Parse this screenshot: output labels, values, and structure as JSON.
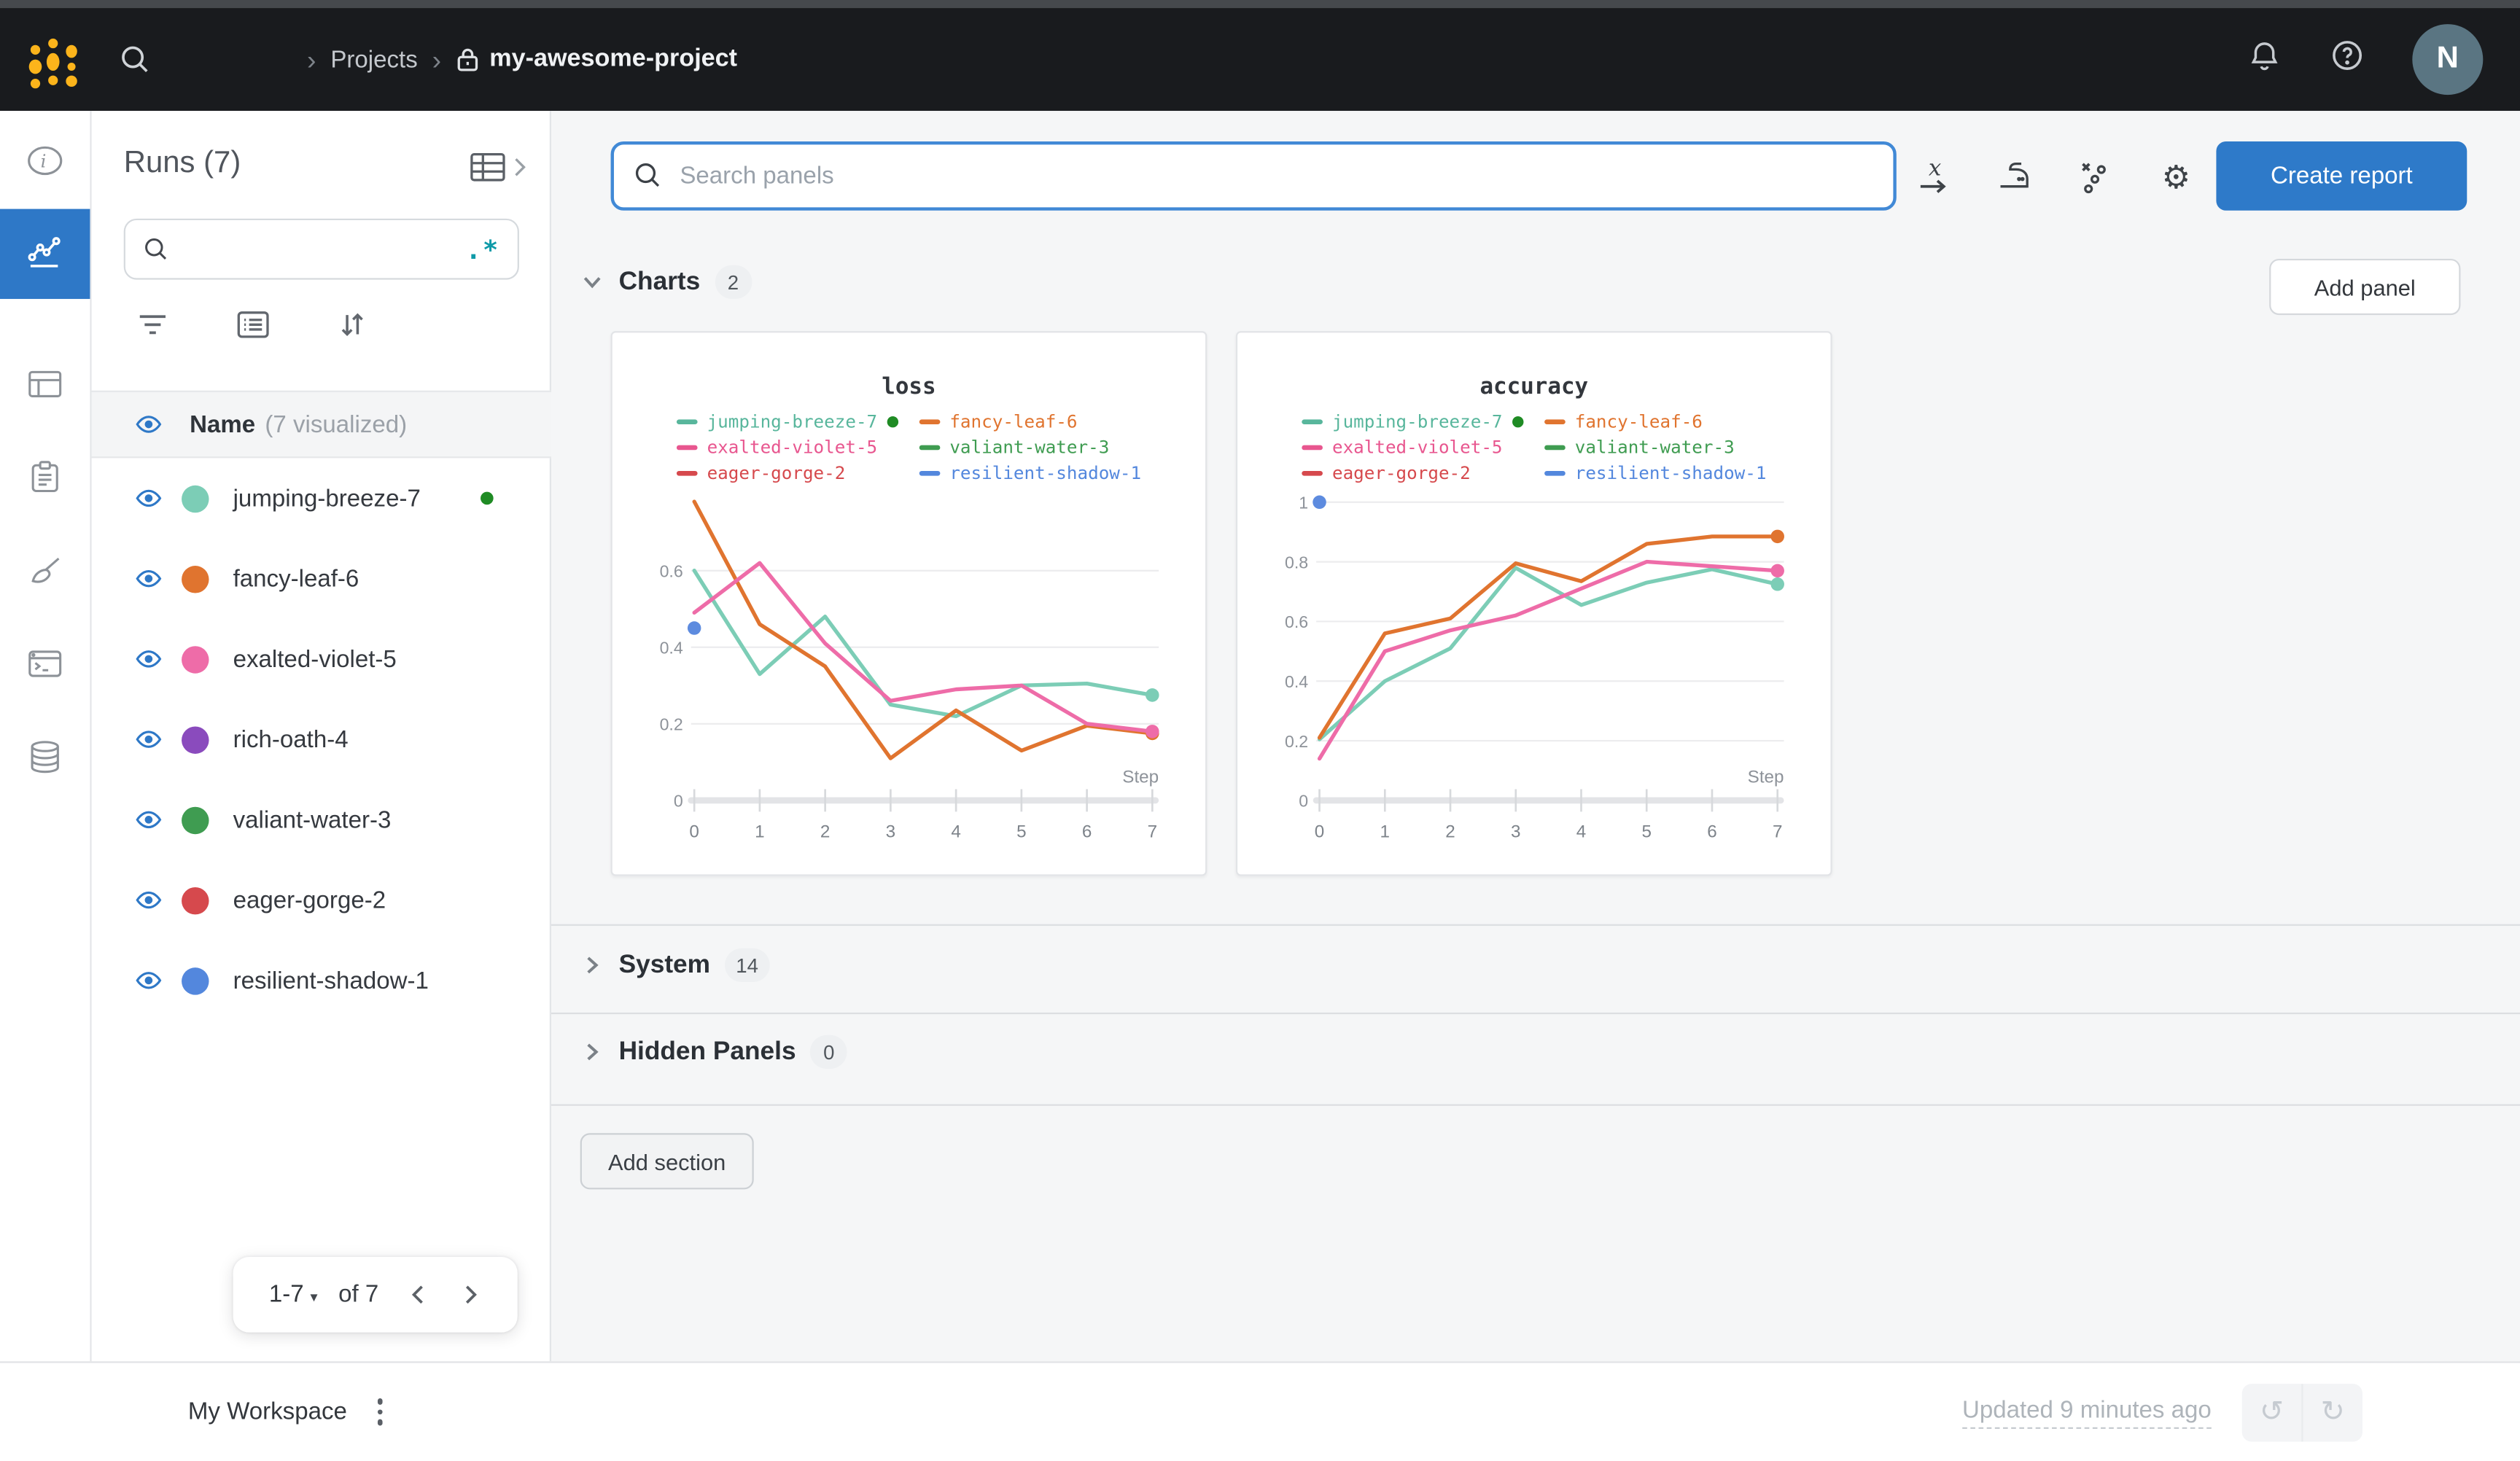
{
  "topbar": {
    "breadcrumb_separator": "›",
    "breadcrumb_section": "Projects",
    "project_name": "my-awesome-project",
    "avatar_initial": "N"
  },
  "sidebar": {
    "title": "Runs (7)",
    "regex_hint": ".*",
    "name_header": "Name",
    "visualized_note": "(7 visualized)",
    "runs": [
      {
        "name": "jumping-breeze-7",
        "color": "#7ccdb6",
        "active": true
      },
      {
        "name": "fancy-leaf-6",
        "color": "#e0742f"
      },
      {
        "name": "exalted-violet-5",
        "color": "#ee6ca8"
      },
      {
        "name": "rich-oath-4",
        "color": "#8a4bbd"
      },
      {
        "name": "valiant-water-3",
        "color": "#3f9c51"
      },
      {
        "name": "eager-gorge-2",
        "color": "#d6494d"
      },
      {
        "name": "resilient-shadow-1",
        "color": "#5387dd"
      }
    ],
    "pagination": {
      "range_label": "1-7",
      "caret": "▾",
      "of_label": "of 7"
    }
  },
  "toolbar": {
    "search_placeholder": "Search panels",
    "create_report_label": "Create report"
  },
  "sections": {
    "charts": {
      "label": "Charts",
      "count": "2",
      "add_panel_label": "Add panel"
    },
    "system": {
      "label": "System",
      "count": "14"
    },
    "hidden": {
      "label": "Hidden Panels",
      "count": "0"
    },
    "add_section_label": "Add section"
  },
  "footer": {
    "workspace_label": "My Workspace",
    "updated_label": "Updated 9 minutes ago",
    "undo_glyph": "↺",
    "redo_glyph": "↻"
  },
  "colors": {
    "accent_blue": "#2e7ac9",
    "topbar_bg": "#191b1e",
    "logo_gold": "#fcb41b",
    "active_green": "#1f8b24",
    "regex_teal": "#0e9aa8"
  },
  "chart_data": [
    {
      "type": "line",
      "title": "loss",
      "xlabel": "Step",
      "x": [
        0,
        1,
        2,
        3,
        4,
        5,
        6,
        7
      ],
      "ylim": [
        0,
        0.81
      ],
      "yticks": [
        0,
        0.2,
        0.4,
        0.6
      ],
      "grid": true,
      "legend_position": "top",
      "legend": [
        {
          "name": "jumping-breeze-7",
          "color": "#58b69c",
          "active": true
        },
        {
          "name": "fancy-leaf-6",
          "color": "#e0742f"
        },
        {
          "name": "exalted-violet-5",
          "color": "#e8568f"
        },
        {
          "name": "valiant-water-3",
          "color": "#3f9c51"
        },
        {
          "name": "eager-gorge-2",
          "color": "#d6494d"
        },
        {
          "name": "resilient-shadow-1",
          "color": "#5387dd"
        }
      ],
      "series": [
        {
          "name": "jumping-breeze-7",
          "color": "#7ccdb6",
          "end_dot": true,
          "values": [
            0.6,
            0.33,
            0.48,
            0.25,
            0.22,
            0.3,
            0.305,
            0.275
          ]
        },
        {
          "name": "fancy-leaf-6",
          "color": "#e0742f",
          "end_dot": true,
          "values": [
            0.78,
            0.46,
            0.35,
            0.11,
            0.235,
            0.13,
            0.195,
            0.175
          ]
        },
        {
          "name": "exalted-violet-5",
          "color": "#ee6ca8",
          "end_dot": true,
          "values": [
            0.49,
            0.62,
            0.41,
            0.26,
            0.29,
            0.3,
            0.2,
            0.18
          ]
        },
        {
          "name": "resilient-shadow-1",
          "color": "#5d8bdf",
          "point": [
            0,
            0.45
          ]
        }
      ]
    },
    {
      "type": "line",
      "title": "accuracy",
      "xlabel": "Step",
      "x": [
        0,
        1,
        2,
        3,
        4,
        5,
        6,
        7
      ],
      "ylim": [
        0,
        1.04
      ],
      "yticks": [
        0,
        0.2,
        0.4,
        0.6,
        0.8,
        1
      ],
      "grid": true,
      "legend_position": "top",
      "legend": [
        {
          "name": "jumping-breeze-7",
          "color": "#58b69c",
          "active": true
        },
        {
          "name": "fancy-leaf-6",
          "color": "#e0742f"
        },
        {
          "name": "exalted-violet-5",
          "color": "#e8568f"
        },
        {
          "name": "valiant-water-3",
          "color": "#3f9c51"
        },
        {
          "name": "eager-gorge-2",
          "color": "#d6494d"
        },
        {
          "name": "resilient-shadow-1",
          "color": "#5387dd"
        }
      ],
      "series": [
        {
          "name": "jumping-breeze-7",
          "color": "#7ccdb6",
          "end_dot": true,
          "values": [
            0.205,
            0.4,
            0.51,
            0.78,
            0.655,
            0.73,
            0.775,
            0.725
          ]
        },
        {
          "name": "exalted-violet-5",
          "color": "#ee6ca8",
          "end_dot": true,
          "values": [
            0.14,
            0.5,
            0.57,
            0.62,
            0.71,
            0.8,
            0.785,
            0.77
          ]
        },
        {
          "name": "fancy-leaf-6",
          "color": "#e0742f",
          "end_dot": true,
          "values": [
            0.21,
            0.56,
            0.61,
            0.795,
            0.735,
            0.86,
            0.885,
            0.885
          ]
        },
        {
          "name": "resilient-shadow-1",
          "color": "#5d8bdf",
          "point": [
            0,
            1.0
          ]
        }
      ]
    }
  ]
}
